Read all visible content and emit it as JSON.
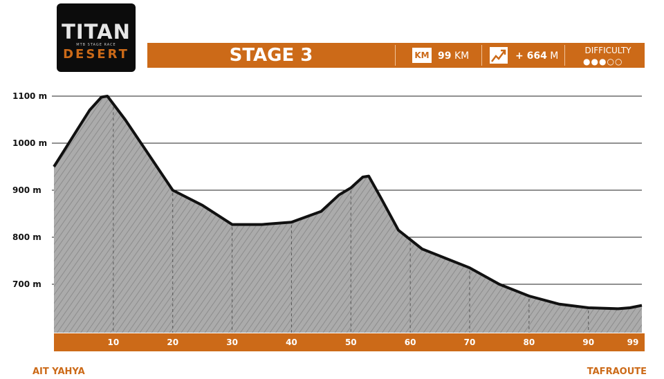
{
  "logo": {
    "line1": "TITAN",
    "line2": "MTB STAGE RACE",
    "line3": "DESERT",
    "icon": "titan-desert-logo"
  },
  "header": {
    "stage": "STAGE 3",
    "distance_badge": "KM",
    "distance_value": "99",
    "distance_unit": "KM",
    "elevation_icon": "elevation-gain-icon",
    "elevation_value": "+ 664",
    "elevation_unit": "M",
    "difficulty_label": "DIFFICULTY",
    "difficulty_rating": 3,
    "difficulty_max": 5
  },
  "colors": {
    "accent": "#cc6a18",
    "fill": "#a9a9a9",
    "line": "#111111"
  },
  "start_label": "AIT YAHYA",
  "finish_label": "TAFRAOUTE",
  "chart_data": {
    "type": "area",
    "x": [
      0,
      2,
      4,
      6,
      8,
      9,
      12,
      16,
      20,
      25,
      30,
      35,
      40,
      45,
      48,
      50,
      52,
      53,
      55,
      58,
      62,
      66,
      70,
      75,
      80,
      85,
      90,
      95,
      97,
      99
    ],
    "values": [
      950,
      990,
      1030,
      1070,
      1098,
      1100,
      1050,
      975,
      900,
      868,
      827,
      827,
      832,
      855,
      890,
      905,
      928,
      930,
      885,
      815,
      775,
      755,
      735,
      700,
      675,
      658,
      650,
      648,
      650,
      655
    ],
    "ylim": [
      610,
      1150
    ],
    "yticks": [
      700,
      800,
      900,
      1000,
      1100
    ],
    "ytick_labels": [
      "700 m",
      "800 m",
      "900 m",
      "1000 m",
      "1100 m"
    ],
    "xticks": [
      10,
      20,
      30,
      40,
      50,
      60,
      70,
      80,
      90,
      99
    ],
    "xtick_labels": [
      "10",
      "20",
      "30",
      "40",
      "50",
      "60",
      "70",
      "80",
      "90",
      "99"
    ],
    "xlim": [
      0,
      99
    ],
    "grid": true
  }
}
